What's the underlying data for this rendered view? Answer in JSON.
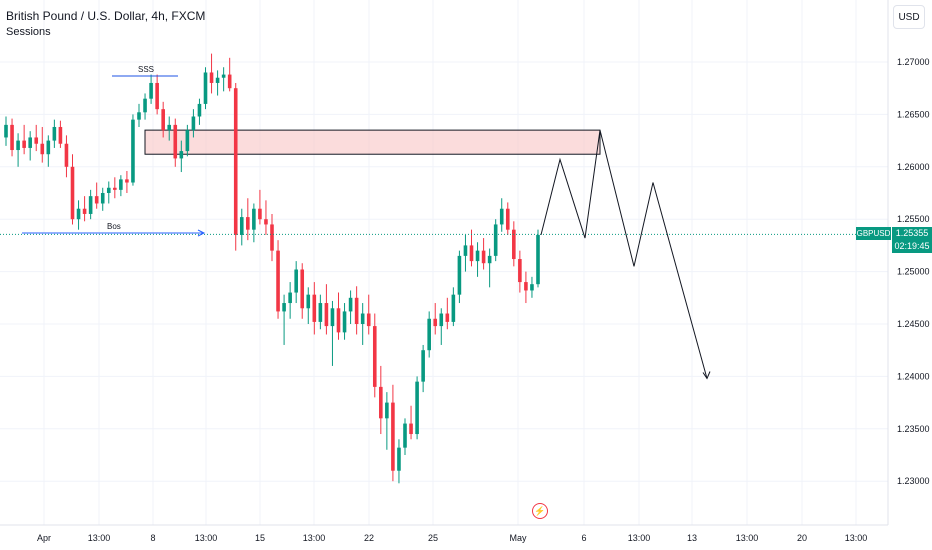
{
  "header": {
    "title": "British Pound / U.S. Dollar, 4h, FXCM",
    "subtitle": "Sessions",
    "currency_button": "USD"
  },
  "price_badge": {
    "symbol": "GBPUSD",
    "price": "1.25355",
    "countdown": "02:19:45"
  },
  "annotations": {
    "sss_label": "SSS",
    "bos_label": "Bos"
  },
  "colors": {
    "up": "#089981",
    "down": "#f23645",
    "grid": "#f0f3fa",
    "zone_fill": "#f8c4c4",
    "price_line": "#089981",
    "bos_line": "#2962ff"
  },
  "chart_data": {
    "type": "candlestick",
    "title": "British Pound / U.S. Dollar, 4h, FXCM",
    "ylim": [
      1.2265,
      1.2735
    ],
    "y_ticks": [
      "1.27000",
      "1.26500",
      "1.26000",
      "1.25500",
      "1.25000",
      "1.24500",
      "1.24000",
      "1.23500",
      "1.23000"
    ],
    "x_ticks": [
      "Apr",
      "13:00",
      "8",
      "13:00",
      "15",
      "13:00",
      "22",
      "25",
      "May",
      "6",
      "13:00",
      "13",
      "13:00",
      "20",
      "13:00"
    ],
    "last_price": 1.25355,
    "supply_zone": {
      "top": 1.2635,
      "bottom": 1.2612
    },
    "projection_path": [
      1.2535,
      1.2607,
      1.2532,
      1.2635,
      1.2505,
      1.2585,
      1.2398
    ],
    "candles": [
      [
        1.2628,
        1.2648,
        1.262,
        1.264
      ],
      [
        1.264,
        1.2646,
        1.261,
        1.2616
      ],
      [
        1.2616,
        1.2632,
        1.26,
        1.2625
      ],
      [
        1.2625,
        1.264,
        1.2612,
        1.2618
      ],
      [
        1.2618,
        1.2634,
        1.2606,
        1.2628
      ],
      [
        1.2628,
        1.264,
        1.2615,
        1.2622
      ],
      [
        1.2622,
        1.2638,
        1.2604,
        1.2612
      ],
      [
        1.2612,
        1.263,
        1.26,
        1.2625
      ],
      [
        1.2625,
        1.2645,
        1.2618,
        1.2638
      ],
      [
        1.2638,
        1.2644,
        1.2618,
        1.2622
      ],
      [
        1.2622,
        1.263,
        1.259,
        1.26
      ],
      [
        1.26,
        1.2612,
        1.2545,
        1.255
      ],
      [
        1.255,
        1.2568,
        1.254,
        1.256
      ],
      [
        1.256,
        1.2572,
        1.2548,
        1.2555
      ],
      [
        1.2555,
        1.2578,
        1.255,
        1.2572
      ],
      [
        1.2572,
        1.2585,
        1.256,
        1.2565
      ],
      [
        1.2565,
        1.258,
        1.2558,
        1.2575
      ],
      [
        1.2575,
        1.2586,
        1.2565,
        1.258
      ],
      [
        1.258,
        1.259,
        1.257,
        1.2578
      ],
      [
        1.2578,
        1.2592,
        1.2572,
        1.2588
      ],
      [
        1.2588,
        1.2596,
        1.2575,
        1.2585
      ],
      [
        1.2585,
        1.265,
        1.2582,
        1.2645
      ],
      [
        1.2645,
        1.266,
        1.2638,
        1.2652
      ],
      [
        1.2652,
        1.267,
        1.2645,
        1.2665
      ],
      [
        1.2665,
        1.2688,
        1.266,
        1.268
      ],
      [
        1.268,
        1.2688,
        1.265,
        1.2655
      ],
      [
        1.2655,
        1.2662,
        1.2628,
        1.2635
      ],
      [
        1.2635,
        1.2648,
        1.2625,
        1.264
      ],
      [
        1.264,
        1.2646,
        1.26,
        1.2608
      ],
      [
        1.2608,
        1.2625,
        1.2595,
        1.2615
      ],
      [
        1.2615,
        1.264,
        1.261,
        1.2635
      ],
      [
        1.2635,
        1.2655,
        1.2628,
        1.2648
      ],
      [
        1.2648,
        1.2665,
        1.264,
        1.266
      ],
      [
        1.266,
        1.2695,
        1.2655,
        1.269
      ],
      [
        1.269,
        1.2708,
        1.267,
        1.268
      ],
      [
        1.268,
        1.2692,
        1.2668,
        1.2685
      ],
      [
        1.2685,
        1.2695,
        1.2672,
        1.2688
      ],
      [
        1.2688,
        1.2704,
        1.2672,
        1.2675
      ],
      [
        1.2675,
        1.268,
        1.252,
        1.2535
      ],
      [
        1.2535,
        1.256,
        1.2525,
        1.2552
      ],
      [
        1.2552,
        1.257,
        1.253,
        1.254
      ],
      [
        1.254,
        1.2565,
        1.2528,
        1.256
      ],
      [
        1.256,
        1.2578,
        1.2545,
        1.255
      ],
      [
        1.255,
        1.2568,
        1.2535,
        1.2545
      ],
      [
        1.2545,
        1.2555,
        1.251,
        1.252
      ],
      [
        1.252,
        1.253,
        1.2455,
        1.2462
      ],
      [
        1.2462,
        1.2478,
        1.243,
        1.247
      ],
      [
        1.247,
        1.249,
        1.2455,
        1.248
      ],
      [
        1.248,
        1.251,
        1.247,
        1.2502
      ],
      [
        1.2502,
        1.2508,
        1.2455,
        1.2465
      ],
      [
        1.2465,
        1.2485,
        1.245,
        1.2478
      ],
      [
        1.2478,
        1.249,
        1.244,
        1.2452
      ],
      [
        1.2452,
        1.2478,
        1.2445,
        1.247
      ],
      [
        1.247,
        1.2488,
        1.244,
        1.2448
      ],
      [
        1.2448,
        1.2472,
        1.241,
        1.2465
      ],
      [
        1.2465,
        1.248,
        1.2435,
        1.2442
      ],
      [
        1.2442,
        1.247,
        1.2435,
        1.2462
      ],
      [
        1.2462,
        1.2482,
        1.245,
        1.2475
      ],
      [
        1.2475,
        1.2486,
        1.244,
        1.245
      ],
      [
        1.245,
        1.247,
        1.243,
        1.246
      ],
      [
        1.246,
        1.2478,
        1.244,
        1.2448
      ],
      [
        1.2448,
        1.246,
        1.238,
        1.239
      ],
      [
        1.239,
        1.241,
        1.2345,
        1.236
      ],
      [
        1.236,
        1.2385,
        1.233,
        1.2375
      ],
      [
        1.2375,
        1.2392,
        1.23,
        1.231
      ],
      [
        1.231,
        1.234,
        1.2298,
        1.2332
      ],
      [
        1.2332,
        1.236,
        1.2325,
        1.2355
      ],
      [
        1.2355,
        1.2372,
        1.234,
        1.2345
      ],
      [
        1.2345,
        1.24,
        1.234,
        1.2395
      ],
      [
        1.2395,
        1.243,
        1.2385,
        1.2425
      ],
      [
        1.2425,
        1.2462,
        1.2418,
        1.2455
      ],
      [
        1.2455,
        1.247,
        1.244,
        1.2448
      ],
      [
        1.2448,
        1.2465,
        1.243,
        1.246
      ],
      [
        1.246,
        1.2475,
        1.2445,
        1.2452
      ],
      [
        1.2452,
        1.2485,
        1.2448,
        1.2478
      ],
      [
        1.2478,
        1.252,
        1.247,
        1.2515
      ],
      [
        1.2515,
        1.2535,
        1.25,
        1.2525
      ],
      [
        1.2525,
        1.254,
        1.2505,
        1.251
      ],
      [
        1.251,
        1.2528,
        1.2495,
        1.252
      ],
      [
        1.252,
        1.2532,
        1.2502,
        1.2508
      ],
      [
        1.2508,
        1.2522,
        1.2485,
        1.2515
      ],
      [
        1.2515,
        1.255,
        1.251,
        1.2545
      ],
      [
        1.2545,
        1.257,
        1.2538,
        1.256
      ],
      [
        1.256,
        1.2566,
        1.2535,
        1.254
      ],
      [
        1.254,
        1.2548,
        1.2505,
        1.2512
      ],
      [
        1.2512,
        1.252,
        1.248,
        1.249
      ],
      [
        1.249,
        1.25,
        1.247,
        1.2482
      ],
      [
        1.2482,
        1.2495,
        1.2475,
        1.2488
      ],
      [
        1.2488,
        1.254,
        1.2485,
        1.2535
      ]
    ]
  }
}
